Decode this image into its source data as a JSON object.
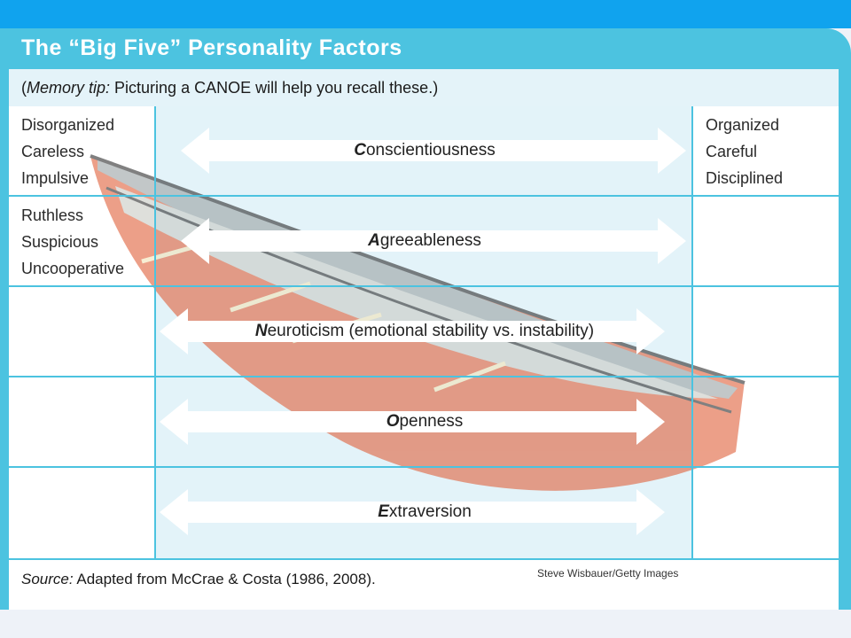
{
  "title": "The “Big Five” Personality Factors",
  "memory_tip": {
    "open_paren": "(",
    "label": "Memory tip:",
    "text": " Picturing a CANOE will help you recall these.)"
  },
  "rows": [
    {
      "left": [
        "Disorganized",
        "Careless",
        "Impulsive"
      ],
      "initial": "C",
      "rest": "onscientiousness",
      "right": [
        "Organized",
        "Careful",
        "Disciplined"
      ]
    },
    {
      "left": [
        "Ruthless",
        "Suspicious",
        "Uncooperative"
      ],
      "initial": "A",
      "rest": "greeableness",
      "right": []
    },
    {
      "left": [],
      "initial": "N",
      "rest": "euroticism (emotional stability vs. instability)",
      "right": []
    },
    {
      "left": [],
      "initial": "O",
      "rest": "penness",
      "right": []
    },
    {
      "left": [],
      "initial": "E",
      "rest": "xtraversion",
      "right": []
    }
  ],
  "source": {
    "label": "Source:",
    "text": " Adapted from McCrae & Costa (1986, 2008)."
  },
  "photo_credit": "Steve Wisbauer/Getty Images",
  "colors": {
    "top_bar": "#10a3ee",
    "frame": "#4cc3e0",
    "canoe": "#e0603a"
  }
}
